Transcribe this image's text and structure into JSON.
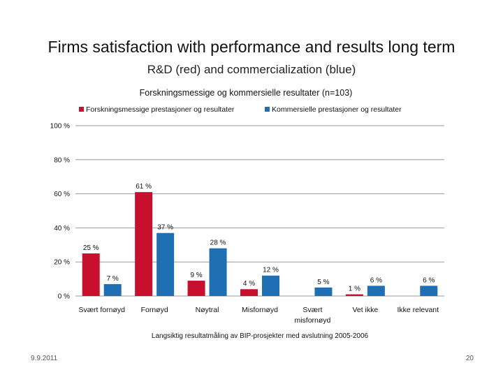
{
  "slide": {
    "title": "Firms satisfaction with performance and results long term",
    "subtitle": "R&D (red) and commercialization (blue)",
    "date": "9.9.2011",
    "page_number": "20"
  },
  "chart_data": {
    "type": "bar",
    "title": "Forskningsmessige og kommersielle resultater (n=103)",
    "xlabel": "Langsiktig resultatmåling av BIP-prosjekter med avslutning 2005-2006",
    "ylabel": "",
    "ylim": [
      0,
      100
    ],
    "yticks": [
      "100 %",
      "80 %",
      "60 %",
      "40 %",
      "20 %",
      "0 %"
    ],
    "categories": [
      "Svært fornøyd",
      "Fornøyd",
      "Nøytral",
      "Misfornøyd",
      "Svært misfornøyd",
      "Vet ikke",
      "Ikke relevant"
    ],
    "series": [
      {
        "name": "Forskningsmessige prestasjoner og resultater",
        "color": "#c8102e",
        "values": [
          25,
          61,
          9,
          4,
          0,
          1,
          0
        ],
        "labels": [
          "25 %",
          "61 %",
          "9 %",
          "4 %",
          "",
          "1 %",
          ""
        ]
      },
      {
        "name": "Kommersielle prestasjoner og resultater",
        "color": "#1f6fb5",
        "values": [
          7,
          37,
          28,
          12,
          5,
          6,
          6
        ],
        "labels": [
          "7 %",
          "37 %",
          "28 %",
          "12 %",
          "5 %",
          "6 %",
          "6 %"
        ]
      }
    ],
    "legend": "top",
    "grid": true
  }
}
